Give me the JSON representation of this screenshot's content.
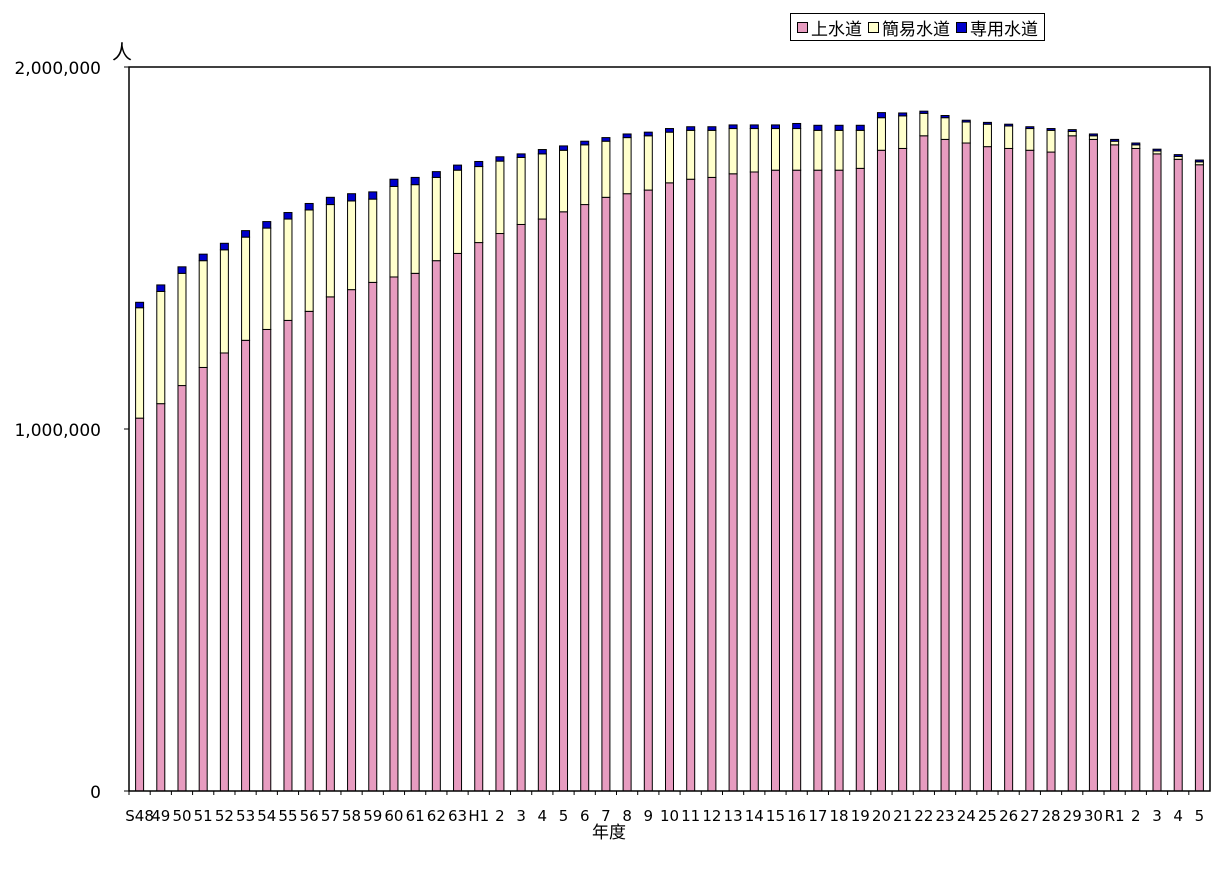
{
  "chart_data": {
    "type": "bar",
    "stacked": true,
    "unit_label": "人",
    "xlabel": "年度",
    "ylabel": "",
    "ylim": [
      0,
      2000000
    ],
    "yticks": [
      0,
      1000000,
      2000000
    ],
    "ytick_labels": [
      "0",
      "1,000,000",
      "2,000,000"
    ],
    "legend_position": "top-right",
    "categories": [
      "S48",
      "49",
      "50",
      "51",
      "52",
      "53",
      "54",
      "55",
      "56",
      "57",
      "58",
      "59",
      "60",
      "61",
      "62",
      "63",
      "H1",
      "2",
      "3",
      "4",
      "5",
      "6",
      "7",
      "8",
      "9",
      "10",
      "11",
      "12",
      "13",
      "14",
      "15",
      "16",
      "17",
      "18",
      "19",
      "20",
      "21",
      "22",
      "23",
      "24",
      "25",
      "26",
      "27",
      "28",
      "29",
      "30",
      "R1",
      "2",
      "3",
      "4",
      "5"
    ],
    "series": [
      {
        "name": "上水道",
        "color": "#e79cc0",
        "values": [
          1030000,
          1070000,
          1120000,
          1170000,
          1210000,
          1245000,
          1275000,
          1300000,
          1325000,
          1365000,
          1385000,
          1405000,
          1420000,
          1430000,
          1465000,
          1485000,
          1515000,
          1540000,
          1565000,
          1580000,
          1600000,
          1620000,
          1640000,
          1650000,
          1660000,
          1680000,
          1690000,
          1695000,
          1705000,
          1710000,
          1715000,
          1715000,
          1715000,
          1715000,
          1720000,
          1770000,
          1775000,
          1810000,
          1800000,
          1790000,
          1780000,
          1775000,
          1770000,
          1765000,
          1810000,
          1800000,
          1785000,
          1775000,
          1760000,
          1745000,
          1730000
        ]
      },
      {
        "name": "簡易水道",
        "color": "#ffffcc",
        "values": [
          305000,
          310000,
          310000,
          295000,
          285000,
          285000,
          280000,
          280000,
          280000,
          255000,
          245000,
          230000,
          250000,
          245000,
          230000,
          230000,
          210000,
          200000,
          185000,
          180000,
          170000,
          165000,
          155000,
          155000,
          150000,
          140000,
          135000,
          130000,
          125000,
          120000,
          115000,
          115000,
          110000,
          110000,
          105000,
          90000,
          90000,
          62000,
          60000,
          58000,
          62000,
          62000,
          60000,
          60000,
          12000,
          10000,
          10000,
          10000,
          8000,
          8000,
          8000
        ]
      },
      {
        "name": "専用水道",
        "color": "#0000cc",
        "values": [
          15000,
          18000,
          18000,
          18000,
          18000,
          18000,
          18000,
          18000,
          18000,
          20000,
          20000,
          20000,
          20000,
          20000,
          16000,
          14000,
          14000,
          12000,
          10000,
          12000,
          12000,
          10000,
          10000,
          10000,
          10000,
          10000,
          10000,
          10000,
          10000,
          10000,
          10000,
          14000,
          14000,
          14000,
          14000,
          14000,
          8000,
          6000,
          6000,
          5000,
          5000,
          5000,
          5000,
          5000,
          5000,
          5000,
          5000,
          5000,
          5000,
          5000,
          5000
        ]
      }
    ]
  }
}
